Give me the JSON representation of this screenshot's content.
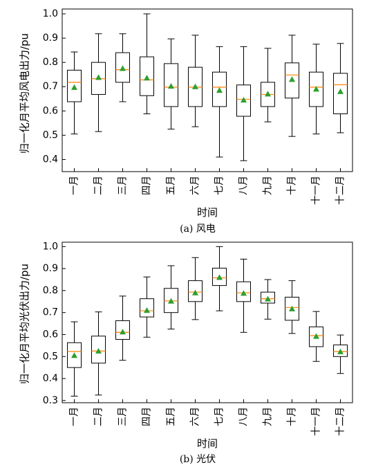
{
  "chart_data": [
    {
      "type": "box",
      "caption": "(a)  风电",
      "xlabel": "时间",
      "ylabel": "归一化月平均风电出力/pu",
      "ylim": [
        0.35,
        1.02
      ],
      "yticks": [
        0.4,
        0.5,
        0.6,
        0.7,
        0.8,
        0.9,
        1.0
      ],
      "categories": [
        "一月",
        "二月",
        "三月",
        "四月",
        "五月",
        "六月",
        "七月",
        "八月",
        "九月",
        "十月",
        "十一月",
        "十二月"
      ],
      "boxes": [
        {
          "min": 0.505,
          "q1": 0.638,
          "median": 0.718,
          "q3": 0.768,
          "max": 0.843,
          "mean": 0.697
        },
        {
          "min": 0.515,
          "q1": 0.668,
          "median": 0.733,
          "q3": 0.8,
          "max": 0.918,
          "mean": 0.738
        },
        {
          "min": 0.638,
          "q1": 0.718,
          "median": 0.77,
          "q3": 0.84,
          "max": 0.918,
          "mean": 0.775
        },
        {
          "min": 0.588,
          "q1": 0.663,
          "median": 0.728,
          "q3": 0.823,
          "max": 1.0,
          "mean": 0.736
        },
        {
          "min": 0.525,
          "q1": 0.618,
          "median": 0.698,
          "q3": 0.795,
          "max": 0.897,
          "mean": 0.702
        },
        {
          "min": 0.535,
          "q1": 0.618,
          "median": 0.698,
          "q3": 0.78,
          "max": 0.912,
          "mean": 0.7
        },
        {
          "min": 0.41,
          "q1": 0.618,
          "median": 0.698,
          "q3": 0.76,
          "max": 0.865,
          "mean": 0.685
        },
        {
          "min": 0.395,
          "q1": 0.578,
          "median": 0.648,
          "q3": 0.707,
          "max": 0.865,
          "mean": 0.645
        },
        {
          "min": 0.555,
          "q1": 0.618,
          "median": 0.668,
          "q3": 0.718,
          "max": 0.858,
          "mean": 0.67
        },
        {
          "min": 0.495,
          "q1": 0.653,
          "median": 0.748,
          "q3": 0.798,
          "max": 0.912,
          "mean": 0.73
        },
        {
          "min": 0.505,
          "q1": 0.618,
          "median": 0.698,
          "q3": 0.76,
          "max": 0.875,
          "mean": 0.69
        },
        {
          "min": 0.51,
          "q1": 0.588,
          "median": 0.708,
          "q3": 0.755,
          "max": 0.878,
          "mean": 0.68
        }
      ],
      "median_color": "#ff8c1a",
      "mean_color": "#2ca02c"
    },
    {
      "type": "box",
      "caption": "(b)  光伏",
      "xlabel": "时间",
      "ylabel": "归一化月平均光伏出力/pu",
      "ylim": [
        0.29,
        1.02
      ],
      "yticks": [
        0.3,
        0.4,
        0.5,
        0.6,
        0.7,
        0.8,
        0.9,
        1.0
      ],
      "categories": [
        "一月",
        "二月",
        "三月",
        "四月",
        "五月",
        "六月",
        "七月",
        "八月",
        "九月",
        "十月",
        "十一月",
        "十二月"
      ],
      "boxes": [
        {
          "min": 0.32,
          "q1": 0.45,
          "median": 0.523,
          "q3": 0.563,
          "max": 0.658,
          "mean": 0.505
        },
        {
          "min": 0.325,
          "q1": 0.47,
          "median": 0.525,
          "q3": 0.593,
          "max": 0.703,
          "mean": 0.525
        },
        {
          "min": 0.483,
          "q1": 0.578,
          "median": 0.61,
          "q3": 0.663,
          "max": 0.775,
          "mean": 0.612
        },
        {
          "min": 0.588,
          "q1": 0.68,
          "median": 0.708,
          "q3": 0.763,
          "max": 0.862,
          "mean": 0.71
        },
        {
          "min": 0.625,
          "q1": 0.7,
          "median": 0.753,
          "q3": 0.81,
          "max": 0.913,
          "mean": 0.752
        },
        {
          "min": 0.668,
          "q1": 0.75,
          "median": 0.793,
          "q3": 0.845,
          "max": 0.95,
          "mean": 0.79
        },
        {
          "min": 0.708,
          "q1": 0.823,
          "median": 0.858,
          "q3": 0.902,
          "max": 1.0,
          "mean": 0.86
        },
        {
          "min": 0.61,
          "q1": 0.75,
          "median": 0.79,
          "q3": 0.84,
          "max": 0.943,
          "mean": 0.788
        },
        {
          "min": 0.67,
          "q1": 0.743,
          "median": 0.763,
          "q3": 0.793,
          "max": 0.85,
          "mean": 0.762
        },
        {
          "min": 0.605,
          "q1": 0.665,
          "median": 0.723,
          "q3": 0.77,
          "max": 0.845,
          "mean": 0.717
        },
        {
          "min": 0.478,
          "q1": 0.545,
          "median": 0.595,
          "q3": 0.635,
          "max": 0.705,
          "mean": 0.592
        },
        {
          "min": 0.423,
          "q1": 0.5,
          "median": 0.523,
          "q3": 0.553,
          "max": 0.598,
          "mean": 0.522
        }
      ],
      "median_color": "#ff8c1a",
      "mean_color": "#2ca02c"
    }
  ]
}
